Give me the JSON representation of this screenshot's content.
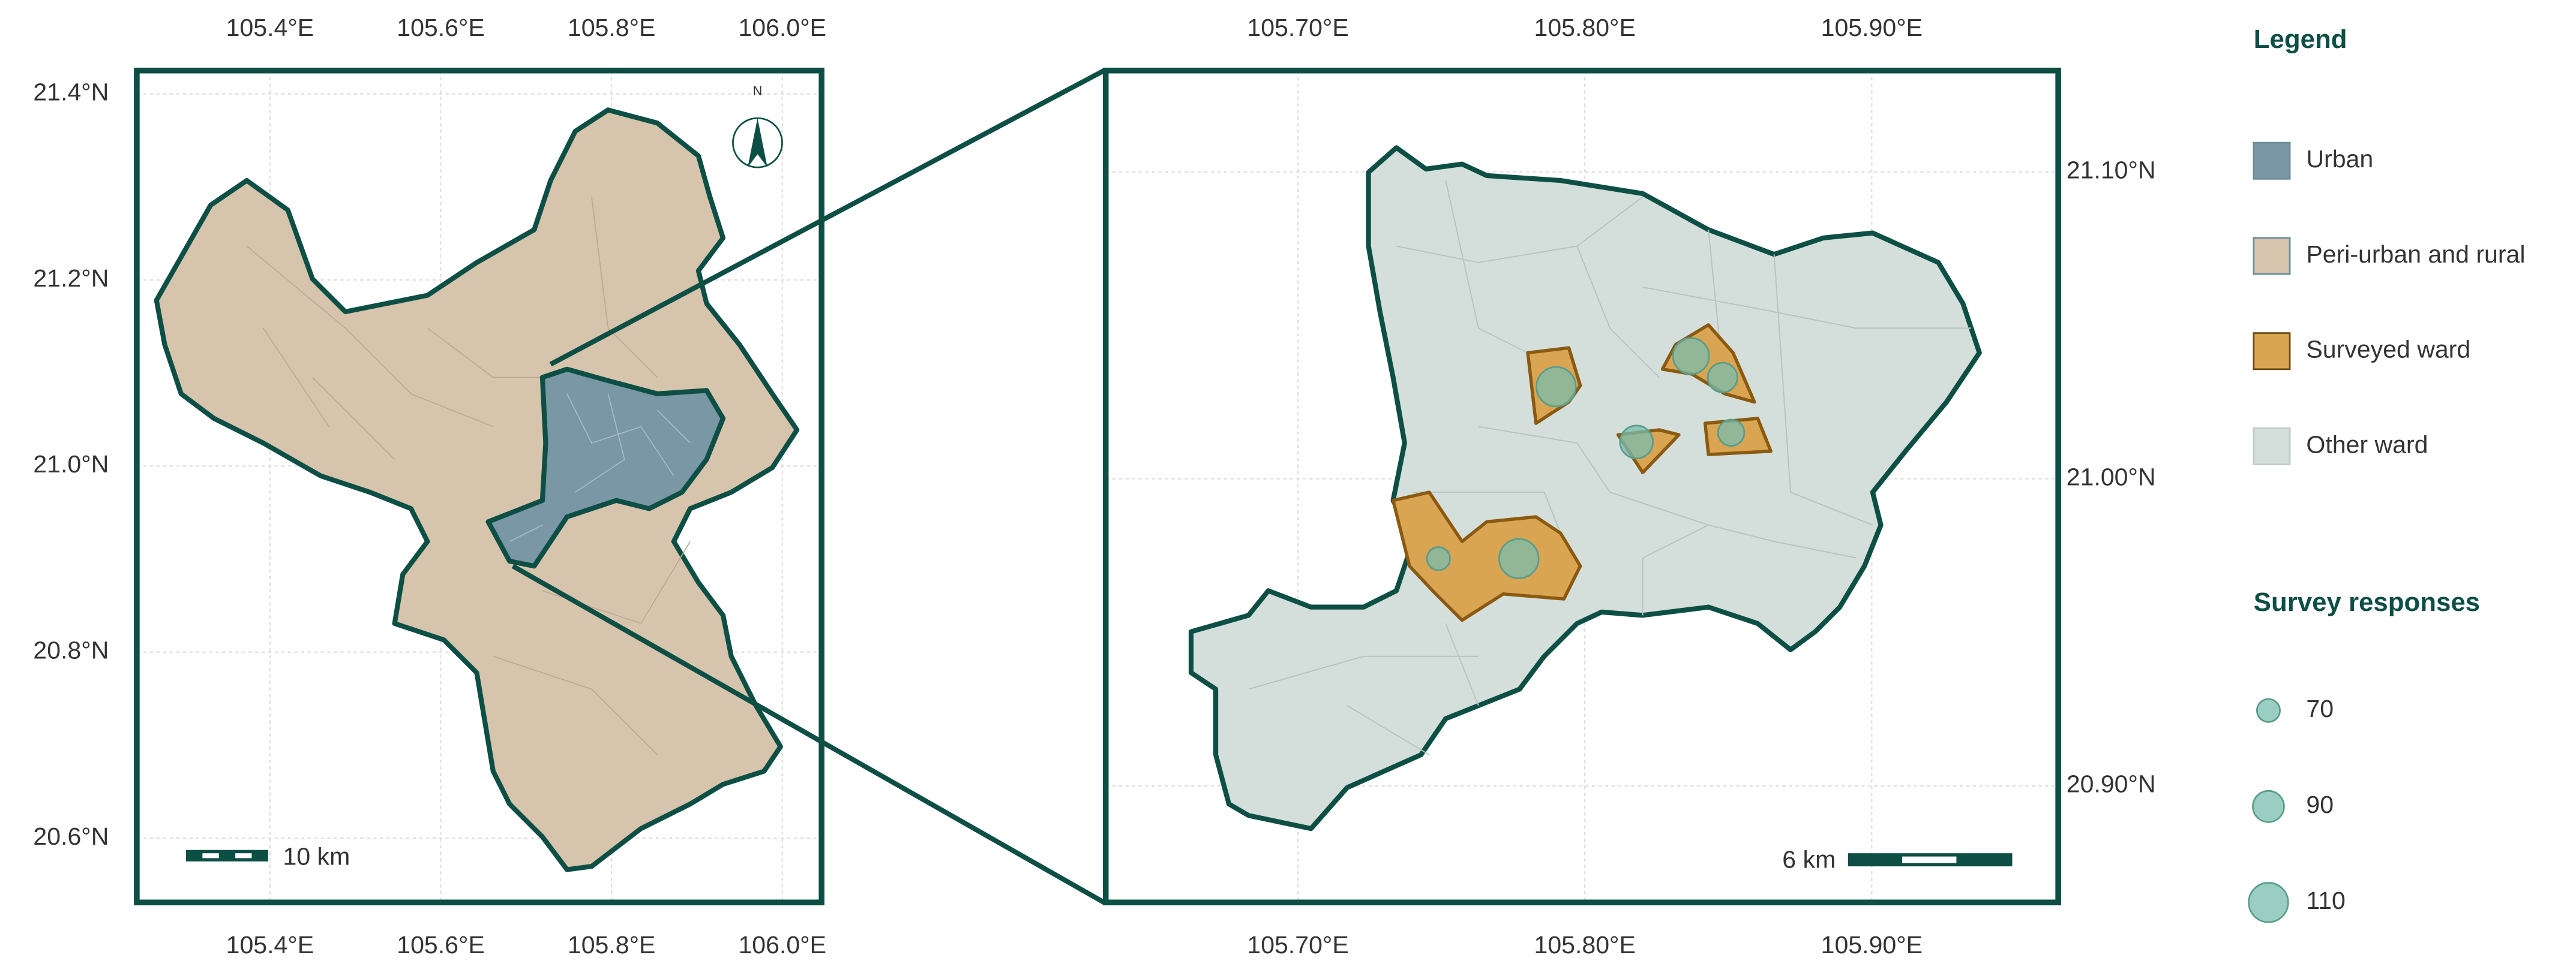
{
  "left_map": {
    "xlim": [
      105.244,
      106.046
    ],
    "ylim": [
      20.531,
      21.425
    ],
    "xticks": [
      {
        "value": 105.4,
        "label": "105.4°E"
      },
      {
        "value": 105.6,
        "label": "105.6°E"
      },
      {
        "value": 105.8,
        "label": "105.8°E"
      },
      {
        "value": 106.0,
        "label": "106.0°E"
      }
    ],
    "yticks": [
      {
        "value": 20.6,
        "label": "20.6°N"
      },
      {
        "value": 20.8,
        "label": "20.8°N"
      },
      {
        "value": 21.0,
        "label": "21.0°N"
      },
      {
        "value": 21.2,
        "label": "21.2°N"
      },
      {
        "value": 21.4,
        "label": "21.4°N"
      }
    ],
    "scale_bar": "10 km",
    "north": "N"
  },
  "right_map": {
    "xlim": [
      105.633,
      105.965
    ],
    "ylim": [
      20.862,
      21.133
    ],
    "xticks": [
      {
        "value": 105.7,
        "label": "105.70°E"
      },
      {
        "value": 105.8,
        "label": "105.80°E"
      },
      {
        "value": 105.9,
        "label": "105.90°E"
      }
    ],
    "yticks": [
      {
        "value": 20.9,
        "label": "20.90°N"
      },
      {
        "value": 21.0,
        "label": "21.00°N"
      },
      {
        "value": 21.1,
        "label": "21.10°N"
      }
    ],
    "scale_bar": "6 km",
    "wards": [
      {
        "lon": 105.79,
        "lat": 21.03,
        "responses": 110
      },
      {
        "lon": 105.837,
        "lat": 21.04,
        "responses": 102
      },
      {
        "lon": 105.848,
        "lat": 21.033,
        "responses": 86
      },
      {
        "lon": 105.818,
        "lat": 21.012,
        "responses": 94
      },
      {
        "lon": 105.851,
        "lat": 21.015,
        "responses": 78
      },
      {
        "lon": 105.749,
        "lat": 20.974,
        "responses": 70
      },
      {
        "lon": 105.777,
        "lat": 20.974,
        "responses": 110
      }
    ]
  },
  "legend": {
    "title": "Legend",
    "items": [
      {
        "label": "Urban",
        "color": "#7a97a6"
      },
      {
        "label": "Peri-urban and rural",
        "color": "#d6c4ad"
      },
      {
        "label": "Surveyed ward",
        "color": "#d9a552"
      },
      {
        "label": "Other ward",
        "color": "#d4dedb"
      }
    ],
    "size_title": "Survey responses",
    "sizes": [
      70,
      90,
      110
    ]
  }
}
